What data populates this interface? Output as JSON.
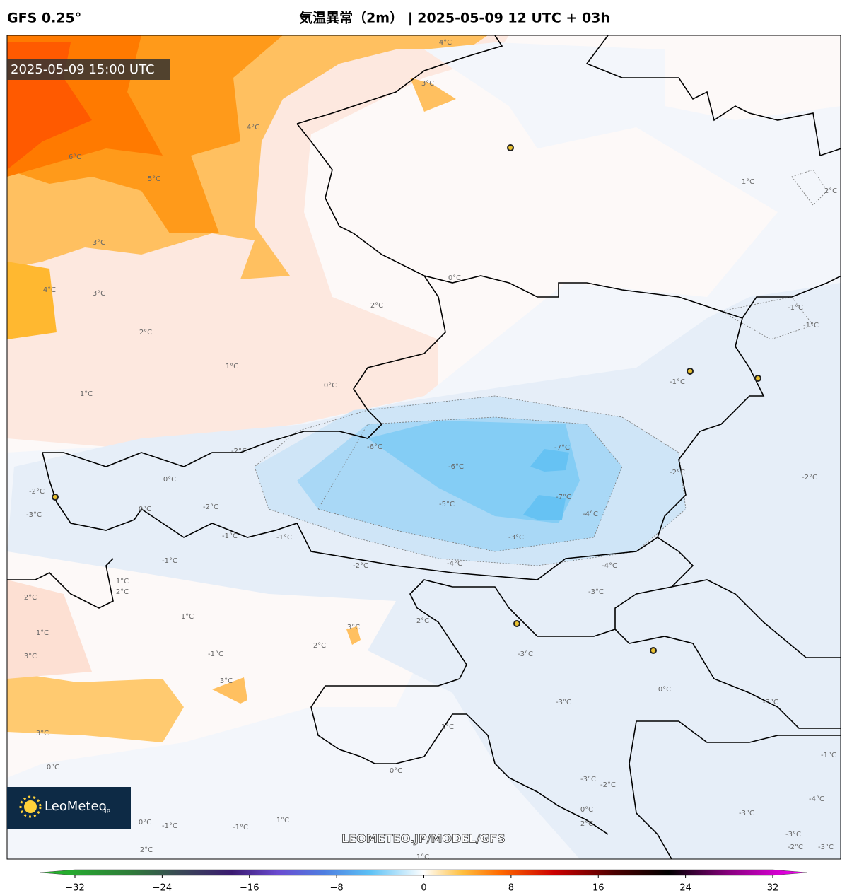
{
  "header": {
    "model": "GFS 0.25°",
    "title": "気温異常（2m） | 2025-05-09 12 UTC + 03h"
  },
  "map": {
    "valid_time": "2025-05-09 15:00 UTC",
    "watermark": "LEOMETEO.JP/MODEL/GFS",
    "logo": "LeoMeteo",
    "logo_suffix": ".jp",
    "contour_labels": [
      "4°C",
      "3°C",
      "4°C",
      "6°C",
      "5°C",
      "3°C",
      "4°C",
      "3°C",
      "2°C",
      "2°C",
      "1°C",
      "1°C",
      "0°C",
      "0°C",
      "1°C",
      "2°C",
      "-1°C",
      "-1°C",
      "-1°C",
      "-6°C",
      "-7°C",
      "-6°C",
      "-7°C",
      "-5°C",
      "-4°C",
      "-3°C",
      "-2°C",
      "-2°C",
      "-4°C",
      "-4°C",
      "-3°C",
      "-2°C",
      "0°C",
      "0°C",
      "-2°C",
      "-1°C",
      "-1°C",
      "-1°C",
      "-2°C",
      "-3°C",
      "-2°C",
      "2°C",
      "1°C",
      "2°C",
      "1°C",
      "3°C",
      "2°C",
      "2°C",
      "-1°C",
      "-3°C",
      "3°C",
      "1°C",
      "3°C",
      "0°C",
      "-3°C",
      "-3°C",
      "1°C",
      "3°C",
      "0°C",
      "0°C",
      "-3°C",
      "-2°C",
      "-1°C",
      "-4°C",
      "-3°C",
      "0°C",
      "2°C",
      "1°C",
      "0°C",
      "-1°C",
      "-1°C",
      "-3°C",
      "-2°C",
      "-3°C",
      "2°C",
      "1°C"
    ]
  },
  "colorbar": {
    "lim": [
      -32,
      32
    ],
    "ticks": [
      {
        "value": -32,
        "label": "−32"
      },
      {
        "value": -24,
        "label": "−24"
      },
      {
        "value": -16,
        "label": "−16"
      },
      {
        "value": -8,
        "label": "−8"
      },
      0,
      8,
      16,
      24,
      32
    ]
  }
}
